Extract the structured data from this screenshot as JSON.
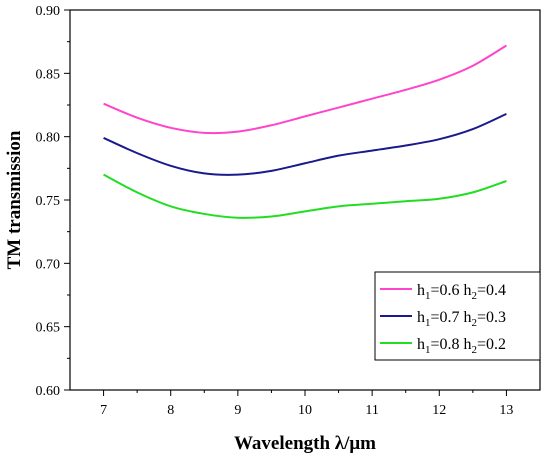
{
  "chart_data": {
    "type": "line",
    "xlabel": "Wavelength λ/μm",
    "ylabel": "TM transmission",
    "xlim": [
      6.5,
      13.5
    ],
    "ylim": [
      0.6,
      0.9
    ],
    "xticks": [
      "7",
      "8",
      "9",
      "10",
      "11",
      "12",
      "13"
    ],
    "yticks": [
      "0.60",
      "0.65",
      "0.70",
      "0.75",
      "0.80",
      "0.85",
      "0.90"
    ],
    "legend_position": "bottom-right",
    "series": [
      {
        "name": "h1=0.6 h2=0.4",
        "legend": {
          "h_a": "h",
          "sub_a": "1",
          "mid": "=0.6 h",
          "sub_b": "2",
          "tail": "=0.4"
        },
        "color": "#ff44cc",
        "x": [
          7.0,
          7.5,
          8.0,
          8.5,
          9.0,
          9.5,
          10.0,
          10.5,
          11.0,
          11.5,
          12.0,
          12.5,
          13.0
        ],
        "y": [
          0.826,
          0.815,
          0.807,
          0.803,
          0.804,
          0.809,
          0.816,
          0.823,
          0.83,
          0.837,
          0.845,
          0.856,
          0.872
        ]
      },
      {
        "name": "h1=0.7 h2=0.3",
        "legend": {
          "h_a": "h",
          "sub_a": "1",
          "mid": "=0.7 h",
          "sub_b": "2",
          "tail": "=0.3"
        },
        "color": "#1a1a8c",
        "x": [
          7.0,
          7.5,
          8.0,
          8.5,
          9.0,
          9.5,
          10.0,
          10.5,
          11.0,
          11.5,
          12.0,
          12.5,
          13.0
        ],
        "y": [
          0.799,
          0.787,
          0.777,
          0.771,
          0.77,
          0.773,
          0.779,
          0.785,
          0.789,
          0.793,
          0.798,
          0.806,
          0.818
        ]
      },
      {
        "name": "h1=0.8 h2=0.2",
        "legend": {
          "h_a": "h",
          "sub_a": "1",
          "mid": "=0.8 h",
          "sub_b": "2",
          "tail": "=0.2"
        },
        "color": "#22dd22",
        "x": [
          7.0,
          7.5,
          8.0,
          8.5,
          9.0,
          9.5,
          10.0,
          10.5,
          11.0,
          11.5,
          12.0,
          12.5,
          13.0
        ],
        "y": [
          0.77,
          0.756,
          0.745,
          0.739,
          0.736,
          0.737,
          0.741,
          0.745,
          0.747,
          0.749,
          0.751,
          0.756,
          0.765
        ]
      }
    ]
  }
}
